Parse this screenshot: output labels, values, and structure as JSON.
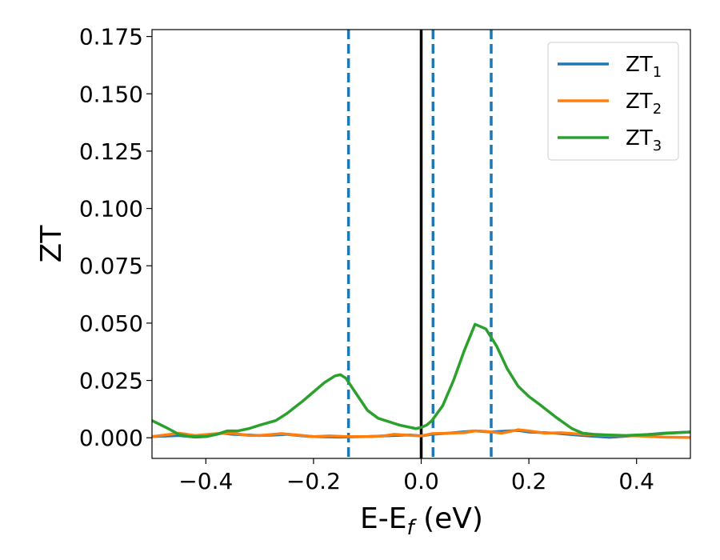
{
  "chart_data": {
    "type": "line",
    "xlabel": "E-E",
    "xlabel_sub": "f",
    "xlabel_unit": " (eV)",
    "ylabel": "ZT",
    "xlim": [
      -0.5,
      0.5
    ],
    "ylim": [
      -0.009,
      0.178
    ],
    "x_ticks": [
      -0.4,
      -0.2,
      0.0,
      0.2,
      0.4
    ],
    "x_tick_labels": [
      "−0.4",
      "−0.2",
      "0.0",
      "0.2",
      "0.4"
    ],
    "y_ticks": [
      0.0,
      0.025,
      0.05,
      0.075,
      0.1,
      0.125,
      0.15,
      0.175
    ],
    "y_tick_labels": [
      "0.000",
      "0.025",
      "0.050",
      "0.075",
      "0.100",
      "0.125",
      "0.150",
      "0.175"
    ],
    "grid": false,
    "legend_position": "top-right",
    "vertical_lines": [
      {
        "x": -0.135,
        "style": "dashed",
        "color": "#1f77b4"
      },
      {
        "x": 0.0,
        "style": "solid",
        "color": "#000000"
      },
      {
        "x": 0.022,
        "style": "dashed",
        "color": "#1f77b4"
      },
      {
        "x": 0.13,
        "style": "dashed",
        "color": "#1f77b4"
      }
    ],
    "series": [
      {
        "name": "ZT",
        "name_sub": "1",
        "color": "#1f77b4",
        "x": [
          -0.5,
          -0.45,
          -0.42,
          -0.4,
          -0.37,
          -0.35,
          -0.3,
          -0.27,
          -0.25,
          -0.22,
          -0.2,
          -0.15,
          -0.1,
          -0.05,
          -0.02,
          0.0,
          0.02,
          0.05,
          0.1,
          0.13,
          0.15,
          0.18,
          0.2,
          0.25,
          0.3,
          0.35,
          0.4,
          0.45,
          0.5
        ],
        "y": [
          0.0005,
          0.001,
          0.0003,
          0.0005,
          0.002,
          0.0015,
          0.001,
          0.0012,
          0.0015,
          0.0008,
          0.0005,
          0.0003,
          0.0005,
          0.001,
          0.0012,
          0.0008,
          0.0015,
          0.002,
          0.003,
          0.0025,
          0.0028,
          0.0032,
          0.0025,
          0.002,
          0.001,
          0.0002,
          0.001,
          0.002,
          0.0025
        ]
      },
      {
        "name": "ZT",
        "name_sub": "2",
        "color": "#ff7f0e",
        "x": [
          -0.5,
          -0.45,
          -0.42,
          -0.38,
          -0.35,
          -0.32,
          -0.3,
          -0.26,
          -0.23,
          -0.2,
          -0.17,
          -0.14,
          -0.1,
          -0.07,
          -0.05,
          -0.03,
          0.0,
          0.02,
          0.05,
          0.08,
          0.1,
          0.12,
          0.15,
          0.18,
          0.2,
          0.23,
          0.26,
          0.3,
          0.35,
          0.4,
          0.45,
          0.5
        ],
        "y": [
          0.0005,
          0.002,
          0.001,
          0.0018,
          0.002,
          0.001,
          0.001,
          0.0018,
          0.0012,
          0.0005,
          0.0008,
          0.0005,
          0.0005,
          0.0008,
          0.0015,
          0.0012,
          0.0008,
          0.0018,
          0.002,
          0.0022,
          0.003,
          0.0028,
          0.002,
          0.0035,
          0.003,
          0.002,
          0.0022,
          0.0015,
          0.001,
          0.0008,
          0.0003,
          0.0001
        ]
      },
      {
        "name": "ZT",
        "name_sub": "3",
        "color": "#2ca02c",
        "x": [
          -0.5,
          -0.47,
          -0.45,
          -0.43,
          -0.4,
          -0.38,
          -0.36,
          -0.34,
          -0.32,
          -0.3,
          -0.27,
          -0.25,
          -0.22,
          -0.2,
          -0.18,
          -0.16,
          -0.15,
          -0.14,
          -0.12,
          -0.1,
          -0.08,
          -0.06,
          -0.04,
          -0.02,
          -0.01,
          0.0,
          0.01,
          0.02,
          0.04,
          0.06,
          0.08,
          0.1,
          0.12,
          0.14,
          0.16,
          0.18,
          0.2,
          0.22,
          0.25,
          0.28,
          0.3,
          0.32,
          0.35,
          0.38,
          0.4,
          0.43,
          0.46,
          0.5
        ],
        "y": [
          0.0075,
          0.004,
          0.0015,
          0.0005,
          0.0005,
          0.0015,
          0.003,
          0.003,
          0.004,
          0.0055,
          0.0075,
          0.0105,
          0.016,
          0.02,
          0.024,
          0.027,
          0.0275,
          0.026,
          0.019,
          0.012,
          0.0085,
          0.007,
          0.0055,
          0.0045,
          0.004,
          0.0045,
          0.0055,
          0.0075,
          0.014,
          0.025,
          0.038,
          0.0495,
          0.0475,
          0.04,
          0.03,
          0.0225,
          0.018,
          0.0145,
          0.009,
          0.004,
          0.002,
          0.0015,
          0.0012,
          0.001,
          0.0012,
          0.0015,
          0.002,
          0.0025
        ]
      }
    ]
  }
}
